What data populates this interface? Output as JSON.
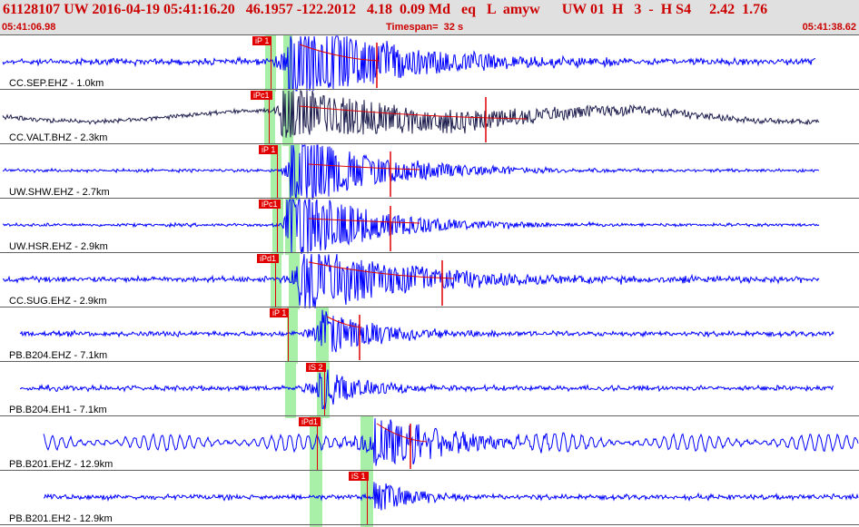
{
  "header": {
    "title": "61128107 UW 2016-04-19 05:41:16.20   46.1957 -122.2012   4.18  0.09 Md   eq   L  amyw      UW 01  H   3  -  H S4     2.42  1.76",
    "start_time": "05:41:06.98",
    "timespan": "Timespan=  32 s",
    "end_time": "05:41:38.62"
  },
  "colors": {
    "trace": "#0000ff",
    "trace_alt": "#202050",
    "pick": "#e00000",
    "window": "#a8f0a8",
    "header_bg": "#e0e0e0",
    "header_text": "#cc0000"
  },
  "traces": [
    {
      "label": "CC.SEP.EHZ - 1.0km",
      "pick": "iP 1",
      "color": "trace",
      "amp": 3,
      "noise": 0.9,
      "start": 3,
      "end": 898,
      "onset": 300,
      "arrival": 318,
      "peak": 55,
      "decay": 110,
      "gw": [
        292,
        304
      ],
      "gw2": [
        312,
        322
      ],
      "pickx": 278,
      "redline": 415,
      "fit": [
        [
          330,
          10
        ],
        [
          418,
          28
        ]
      ]
    },
    {
      "label": "CC.VALT.BHZ - 2.3km",
      "pick": "iPc1",
      "color": "trace_alt",
      "amp": 6,
      "noise": 1,
      "start": 3,
      "end": 902,
      "onset": 300,
      "arrival": 310,
      "peak": 30,
      "decay": 200,
      "gw": [
        291,
        303
      ],
      "gw2": [
        311,
        323
      ],
      "pickx": 276,
      "redline": 535,
      "slow": true,
      "fit": [
        [
          330,
          18
        ],
        [
          580,
          32
        ]
      ]
    },
    {
      "label": "UW.SHW.EHZ - 2.7km",
      "pick": "iP 1",
      "color": "trace",
      "amp": 2,
      "noise": 0.7,
      "start": 3,
      "end": 902,
      "onset": 308,
      "arrival": 320,
      "peak": 45,
      "decay": 90,
      "gw": [
        298,
        310
      ],
      "gw2": [
        318,
        330
      ],
      "pickx": 285,
      "redline": 430,
      "fit": [
        [
          340,
          22
        ],
        [
          462,
          28
        ]
      ]
    },
    {
      "label": "UW.HSR.EHZ - 2.9km",
      "pick": "iPc1",
      "color": "trace",
      "amp": 2,
      "noise": 0.7,
      "start": 3,
      "end": 902,
      "onset": 310,
      "arrival": 316,
      "peak": 48,
      "decay": 85,
      "gw": [
        300,
        312
      ],
      "gw2": [
        314,
        326
      ],
      "pickx": 285,
      "redline": 430,
      "fit": [
        [
          340,
          22
        ],
        [
          462,
          27
        ]
      ]
    },
    {
      "label": "CC.SUG.EHZ - 2.9km",
      "pick": "iPd1",
      "color": "trace",
      "amp": 2.5,
      "noise": 1,
      "start": 3,
      "end": 902,
      "onset": 308,
      "arrival": 330,
      "peak": 40,
      "decay": 120,
      "gw": [
        298,
        310
      ],
      "gw2": [
        318,
        330
      ],
      "pickx": 283,
      "redline": 487,
      "fit": [
        [
          340,
          10
        ],
        [
          500,
          28
        ]
      ]
    },
    {
      "label": "PB.B204.EHZ - 7.1km",
      "pick": "iP 1",
      "color": "trace",
      "amp": 2.5,
      "noise": 0.9,
      "start": 22,
      "end": 918,
      "onset": 325,
      "arrival": 353,
      "peak": 28,
      "decay": 60,
      "gw": [
        316,
        328
      ],
      "gw2": [
        348,
        362
      ],
      "pickx": 297,
      "redline": 396,
      "fit": [
        [
          360,
          10
        ],
        [
          398,
          22
        ]
      ]
    },
    {
      "label": "PB.B204.EH1 - 7.1km",
      "pick": "iS 2",
      "color": "trace",
      "amp": 2.5,
      "noise": 0.9,
      "start": 22,
      "end": 918,
      "onset": 325,
      "arrival": 352,
      "peak": 26,
      "decay": 45,
      "gw": [
        314,
        326
      ],
      "gw2": [
        349,
        363
      ],
      "pickx": 337,
      "redline": 0,
      "fit": []
    },
    {
      "label": "PB.B201.EHZ - 12.9km",
      "pick": "iPd1",
      "color": "trace",
      "amp": 9,
      "noise": 1,
      "start": 48,
      "end": 945,
      "onset": 353,
      "arrival": 412,
      "peak": 28,
      "decay": 80,
      "gw": [
        341,
        355
      ],
      "gw2": [
        397,
        411
      ],
      "pickx": 329,
      "redline": 452,
      "fit": [
        [
          415,
          8
        ],
        [
          470,
          28
        ]
      ]
    },
    {
      "label": "PB.B201.EH2 - 12.9km",
      "pick": "iS 1",
      "color": "trace",
      "amp": 2.5,
      "noise": 0.9,
      "start": 48,
      "end": 945,
      "onset": 412,
      "arrival": 412,
      "peak": 20,
      "decay": 40,
      "gw": [
        341,
        355
      ],
      "gw2": [
        397,
        411
      ],
      "pickx": 384,
      "redline": 0,
      "fit": []
    }
  ]
}
